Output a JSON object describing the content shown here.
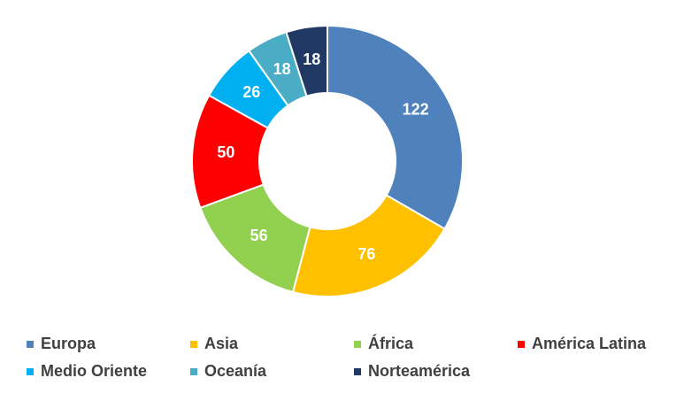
{
  "chart_data": {
    "type": "donut",
    "categories": [
      "Europa",
      "Asia",
      "África",
      "América Latina",
      "Medio Oriente",
      "Oceanía",
      "Norteamérica"
    ],
    "values": [
      122,
      76,
      56,
      50,
      26,
      18,
      18
    ],
    "colors": [
      "#4f81bd",
      "#ffc000",
      "#92d050",
      "#ff0000",
      "#00b0f0",
      "#4bacc6",
      "#1f3864"
    ],
    "legend": "bottom"
  }
}
